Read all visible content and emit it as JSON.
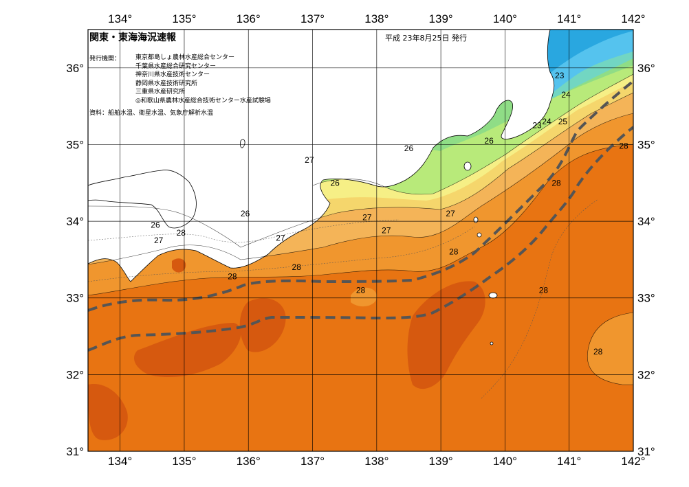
{
  "header": {
    "title": "関東・東海海況速報",
    "issue_date": "平成 23年8月25日 発行",
    "publishers_label": "発行機関：",
    "publishers": [
      "東京都島しょ農林水産総合センター",
      "千葉県水産総合研究センター",
      "神奈川県水産技術センター",
      "静岡県水産技術研究所",
      "三重県水産研究所",
      "◎和歌山県農林水産総合技術センター水産試験場"
    ],
    "data_sources": "資料：船舶水温、衛星水温、気象庁解析水温"
  },
  "axes": {
    "longitude_labels": [
      "134°",
      "135°",
      "136°",
      "137°",
      "138°",
      "139°",
      "140°",
      "141°",
      "142°"
    ],
    "latitude_labels": [
      "36°",
      "35°",
      "34°",
      "33°",
      "32°",
      "31°"
    ]
  },
  "contours": [
    {
      "value": "23",
      "lon": 140.85,
      "lat": 35.9
    },
    {
      "value": "24",
      "lon": 140.95,
      "lat": 35.65
    },
    {
      "value": "23",
      "lon": 140.5,
      "lat": 35.25
    },
    {
      "value": "24",
      "lon": 140.65,
      "lat": 35.3
    },
    {
      "value": "25",
      "lon": 140.9,
      "lat": 35.3
    },
    {
      "value": "26",
      "lon": 139.75,
      "lat": 35.05
    },
    {
      "value": "26",
      "lon": 138.5,
      "lat": 34.95
    },
    {
      "value": "27",
      "lon": 136.95,
      "lat": 34.8
    },
    {
      "value": "26",
      "lon": 137.35,
      "lat": 34.5
    },
    {
      "value": "26",
      "lon": 135.95,
      "lat": 34.1
    },
    {
      "value": "26",
      "lon": 134.55,
      "lat": 33.95
    },
    {
      "value": "28",
      "lon": 134.95,
      "lat": 33.85
    },
    {
      "value": "27",
      "lon": 134.6,
      "lat": 33.75
    },
    {
      "value": "27",
      "lon": 136.5,
      "lat": 33.78
    },
    {
      "value": "27",
      "lon": 137.85,
      "lat": 34.05
    },
    {
      "value": "27",
      "lon": 138.15,
      "lat": 33.88
    },
    {
      "value": "27",
      "lon": 139.15,
      "lat": 34.1
    },
    {
      "value": "28",
      "lon": 136.75,
      "lat": 33.4
    },
    {
      "value": "28",
      "lon": 135.75,
      "lat": 33.28
    },
    {
      "value": "28",
      "lon": 137.75,
      "lat": 33.1
    },
    {
      "value": "28",
      "lon": 139.2,
      "lat": 33.6
    },
    {
      "value": "28",
      "lon": 140.8,
      "lat": 34.5
    },
    {
      "value": "28",
      "lon": 141.85,
      "lat": 34.98
    },
    {
      "value": "28",
      "lon": 140.6,
      "lat": 33.1
    },
    {
      "value": "28",
      "lon": 141.45,
      "lat": 32.3
    }
  ],
  "colors": {
    "t22": "#29a7e0",
    "t23": "#55c3ee",
    "t24": "#72d6c2",
    "t25": "#8fdd86",
    "t26": "#b8ea7a",
    "t27": "#f6ef86",
    "t27b": "#f5d66c",
    "t28": "#f4b458",
    "t28b": "#f0962e",
    "t29": "#e87412",
    "t30": "#d6590f",
    "land": "#ffffff"
  }
}
